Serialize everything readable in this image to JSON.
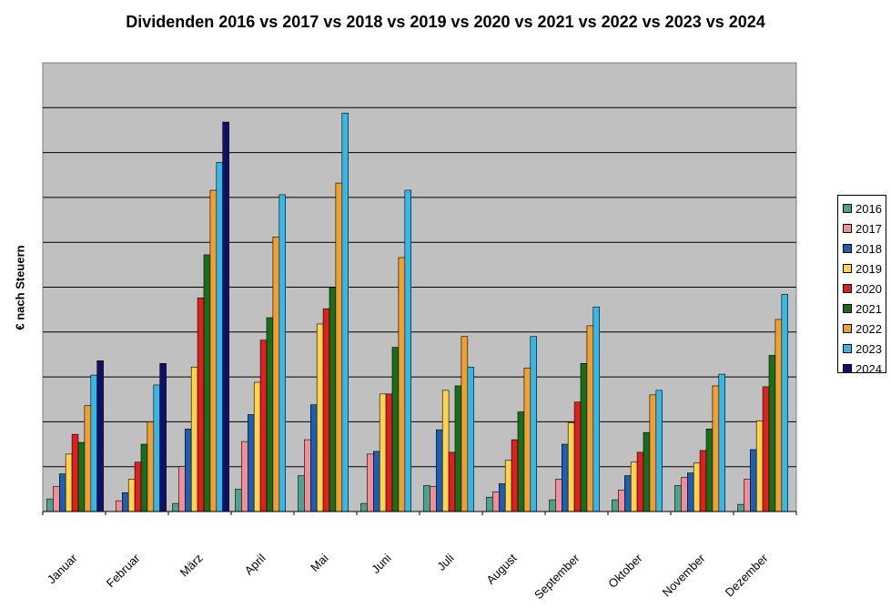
{
  "chart_data": {
    "type": "bar",
    "title": "Dividenden 2016 vs 2017 vs 2018 vs 2019 vs 2020 vs 2021 vs 2022 vs 2023 vs 2024",
    "xlabel": "",
    "ylabel": "€ nach Steuern",
    "ylim": [
      0,
      10
    ],
    "grid": true,
    "legend_position": "right",
    "categories": [
      "Januar",
      "Februar",
      "März",
      "April",
      "Mai",
      "Juni",
      "Juli",
      "August",
      "September",
      "Oktober",
      "November",
      "Dezember"
    ],
    "series": [
      {
        "name": "2016",
        "color": "#4BA38F",
        "values": [
          0.28,
          0.0,
          0.18,
          0.5,
          0.8,
          0.18,
          0.58,
          0.32,
          0.26,
          0.26,
          0.58,
          0.16
        ]
      },
      {
        "name": "2017",
        "color": "#F28E96",
        "values": [
          0.56,
          0.24,
          1.0,
          1.56,
          1.6,
          1.28,
          0.56,
          0.44,
          0.72,
          0.48,
          0.76,
          0.72
        ]
      },
      {
        "name": "2018",
        "color": "#1E5FB4",
        "values": [
          0.84,
          0.42,
          1.84,
          2.16,
          2.38,
          1.34,
          1.82,
          0.62,
          1.5,
          0.8,
          0.86,
          1.38
        ]
      },
      {
        "name": "2019",
        "color": "#FFD34E",
        "values": [
          1.28,
          0.72,
          3.22,
          2.88,
          4.18,
          2.62,
          2.7,
          1.14,
          1.98,
          1.1,
          1.08,
          2.02
        ]
      },
      {
        "name": "2020",
        "color": "#E02020",
        "values": [
          1.72,
          1.1,
          4.76,
          3.82,
          4.52,
          2.62,
          1.32,
          1.6,
          2.44,
          1.32,
          1.36,
          2.78
        ]
      },
      {
        "name": "2021",
        "color": "#1A6E1A",
        "values": [
          1.54,
          1.5,
          5.72,
          4.32,
          4.98,
          3.66,
          2.8,
          2.22,
          3.3,
          1.76,
          1.84,
          3.48
        ]
      },
      {
        "name": "2022",
        "color": "#F0A030",
        "values": [
          2.36,
          2.0,
          7.16,
          6.12,
          7.32,
          5.66,
          3.9,
          3.2,
          4.14,
          2.6,
          2.8,
          4.28
        ]
      },
      {
        "name": "2023",
        "color": "#38B6E6",
        "values": [
          3.04,
          2.82,
          7.78,
          7.06,
          8.88,
          7.16,
          3.22,
          3.9,
          4.56,
          2.7,
          3.06,
          4.84
        ]
      },
      {
        "name": "2024",
        "color": "#10106A",
        "values": [
          3.36,
          3.3,
          8.68,
          null,
          null,
          null,
          null,
          null,
          null,
          null,
          null,
          null
        ]
      }
    ]
  }
}
